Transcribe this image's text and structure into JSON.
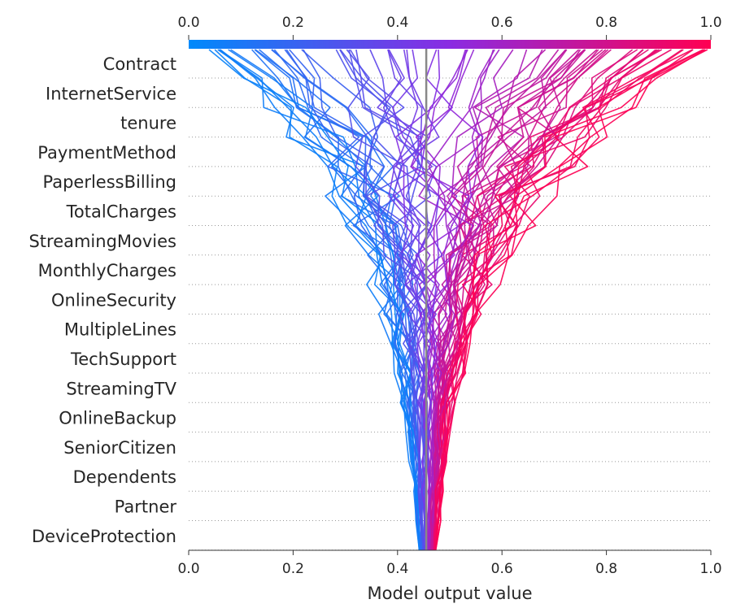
{
  "chart_data": {
    "type": "decision_plot",
    "xlabel": "Model output value",
    "xlim": [
      0.0,
      1.0
    ],
    "x_ticks": [
      "0.0",
      "0.2",
      "0.4",
      "0.6",
      "0.8",
      "1.0"
    ],
    "base_value": 0.455,
    "features": [
      "Contract",
      "InternetService",
      "tenure",
      "PaymentMethod",
      "PaperlessBilling",
      "TotalCharges",
      "StreamingMovies",
      "MonthlyCharges",
      "OnlineSecurity",
      "MultipleLines",
      "TechSupport",
      "StreamingTV",
      "OnlineBackup",
      "SeniorCitizen",
      "Dependents",
      "Partner",
      "DeviceProtection"
    ],
    "colormap": {
      "low": "#008afb",
      "mid": "#8a2be2",
      "high": "#ff0052"
    },
    "grid": "dotted"
  }
}
